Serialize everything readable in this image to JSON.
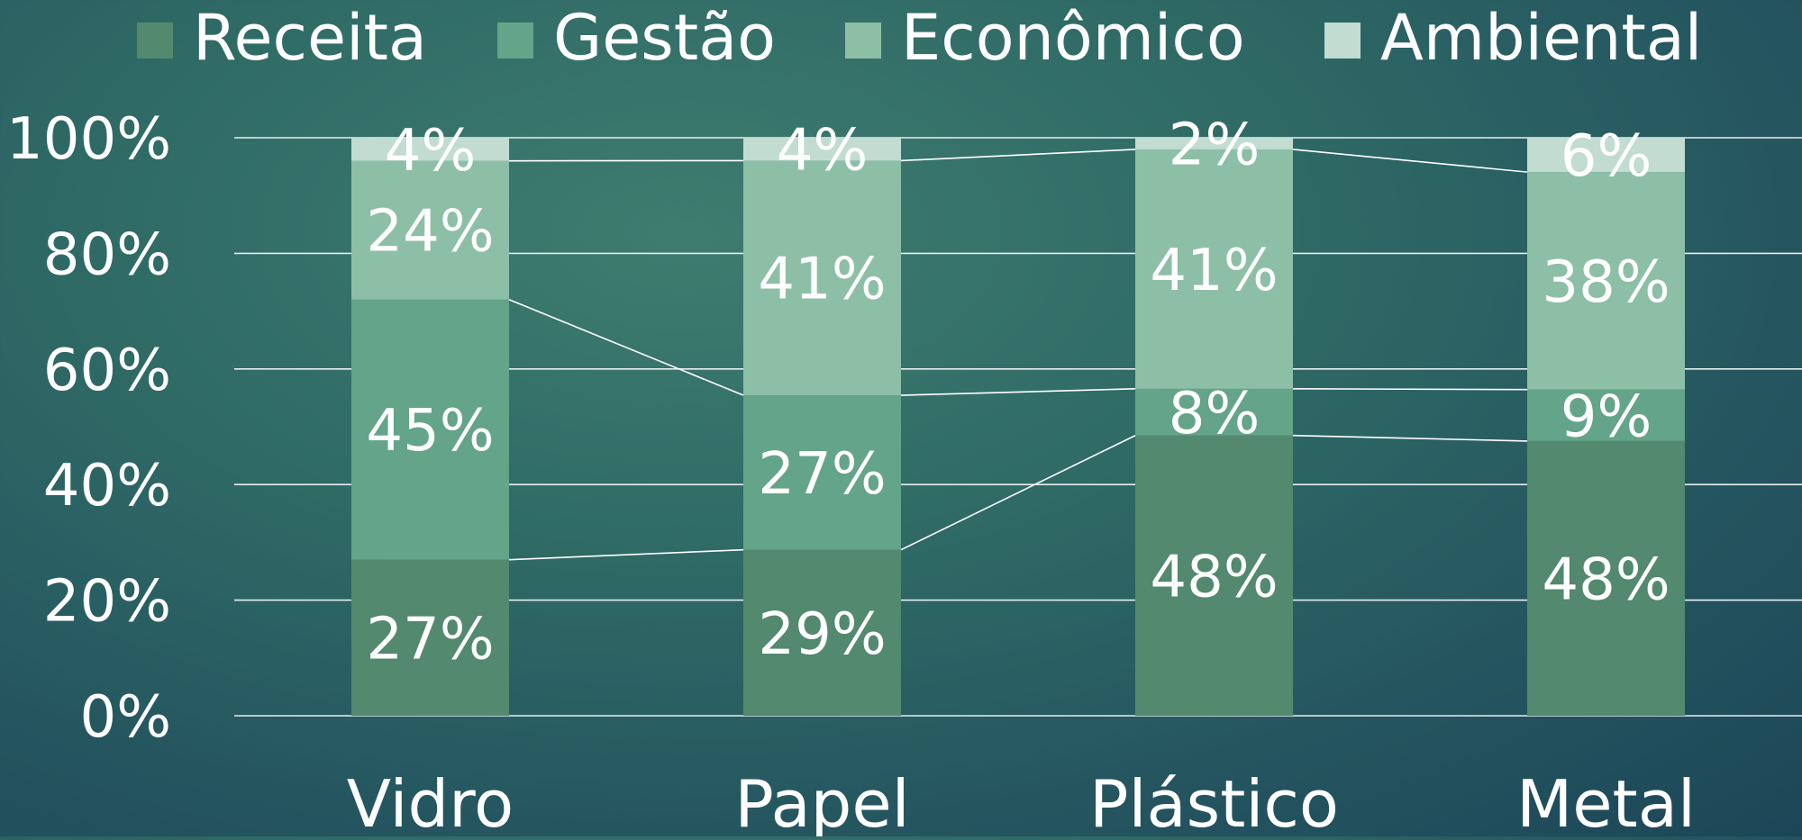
{
  "chart_data": {
    "type": "bar",
    "stacked": true,
    "percent_stacked": true,
    "categories": [
      "Vidro",
      "Papel",
      "Plástico",
      "Metal"
    ],
    "series": [
      {
        "name": "Receita",
        "values": [
          27,
          29,
          48,
          48
        ],
        "labels": [
          "27%",
          "29%",
          "48%",
          "48%"
        ],
        "color": "#52896f"
      },
      {
        "name": "Gestão",
        "values": [
          45,
          27,
          8,
          9
        ],
        "labels": [
          "45%",
          "27%",
          "8%",
          "9%"
        ],
        "color": "#64a488"
      },
      {
        "name": "Econômico",
        "values": [
          24,
          41,
          41,
          38
        ],
        "labels": [
          "24%",
          "41%",
          "41%",
          "38%"
        ],
        "color": "#8dbfa7"
      },
      {
        "name": "Ambiental",
        "values": [
          4,
          4,
          2,
          6
        ],
        "labels": [
          "4%",
          "4%",
          "2%",
          "6%"
        ],
        "color": "#c2dcd2"
      }
    ],
    "y_ticks": [
      "0%",
      "20%",
      "40%",
      "60%",
      "80%",
      "100%"
    ],
    "ylim": [
      0,
      100
    ],
    "grid": true,
    "series_lines": true,
    "legend_position": "top",
    "text_color": "#ffffff",
    "grid_color": "#e6eeee"
  }
}
